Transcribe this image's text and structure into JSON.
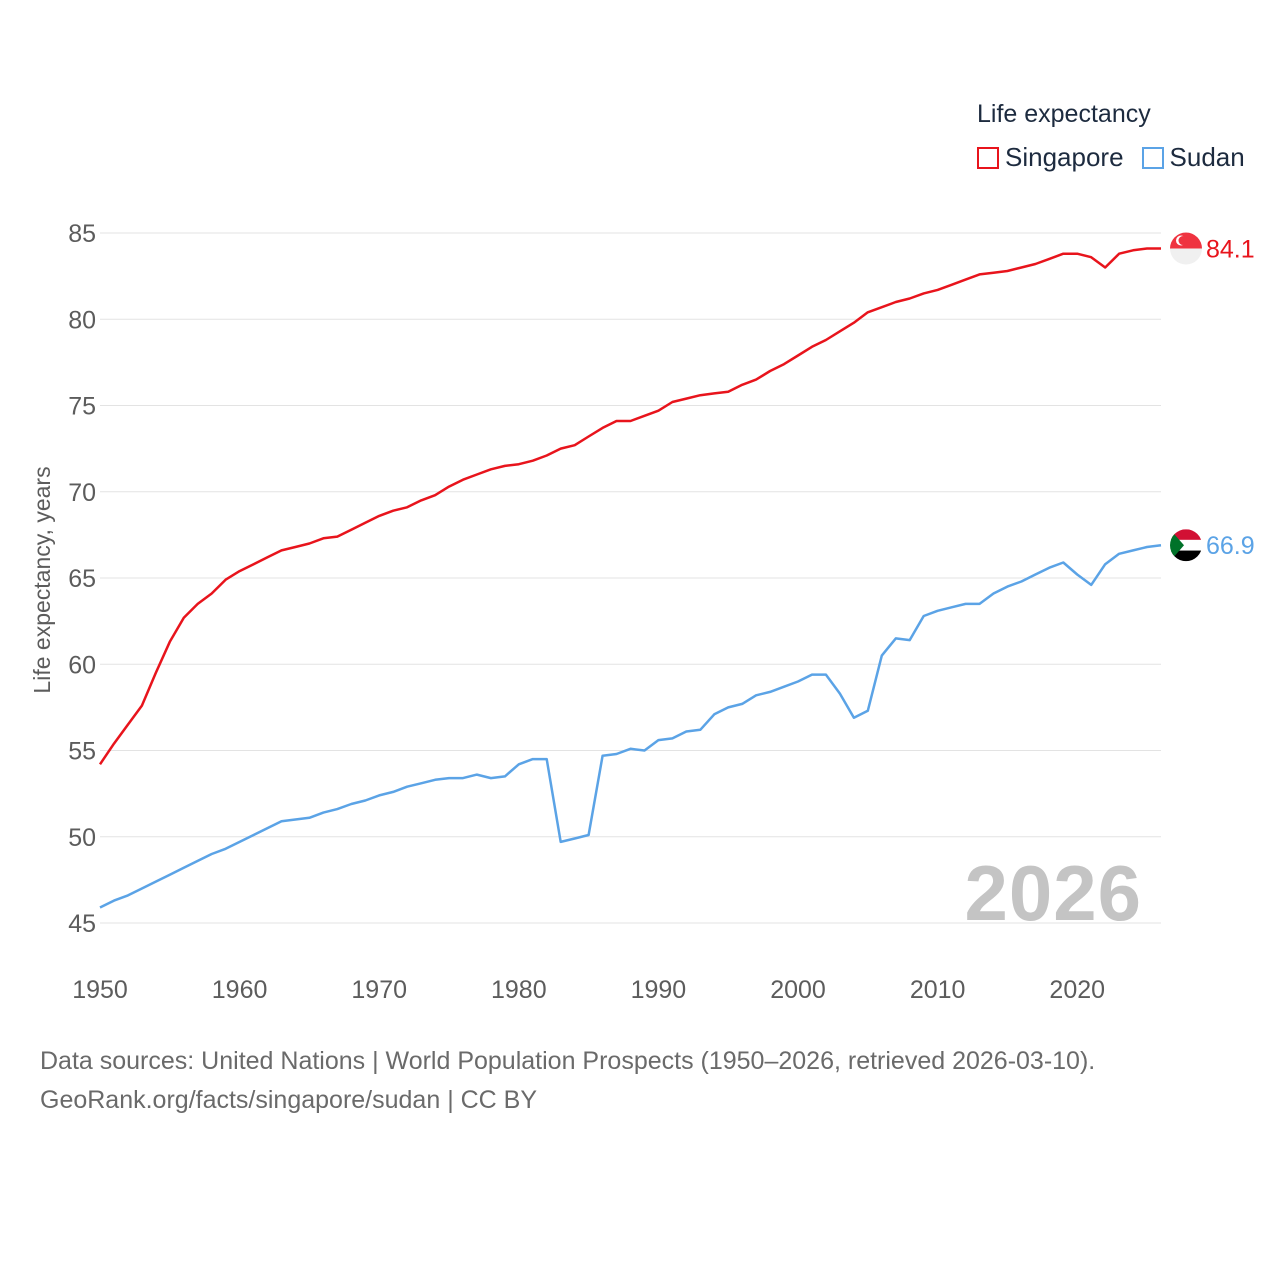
{
  "legend": {
    "title": "Life expectancy",
    "items": [
      {
        "label": "Singapore",
        "color": "#e8141c"
      },
      {
        "label": "Sudan",
        "color": "#5ba3e6"
      }
    ]
  },
  "year_watermark": "2026",
  "source": {
    "line1": "Data sources: United Nations | World Population Prospects (1950–2026, retrieved 2026-03-10).",
    "line2": "GeoRank.org/facts/singapore/sudan | CC BY"
  },
  "end_labels": [
    {
      "country": "Singapore",
      "value_text": "84.1",
      "flag": "singapore-flag-icon"
    },
    {
      "country": "Sudan",
      "value_text": "66.9",
      "flag": "sudan-flag-icon"
    }
  ],
  "chart_data": {
    "type": "line",
    "title": "Life expectancy",
    "xlabel": "",
    "ylabel": "Life expectancy, years",
    "xlim": [
      1950,
      2026
    ],
    "ylim": [
      43,
      88
    ],
    "xticks": [
      1950,
      1960,
      1970,
      1980,
      1990,
      2000,
      2010,
      2020
    ],
    "yticks": [
      45,
      50,
      55,
      60,
      65,
      70,
      75,
      80,
      85
    ],
    "grid": true,
    "legend_position": "top-right",
    "x": [
      1950,
      1951,
      1952,
      1953,
      1954,
      1955,
      1956,
      1957,
      1958,
      1959,
      1960,
      1961,
      1962,
      1963,
      1964,
      1965,
      1966,
      1967,
      1968,
      1969,
      1970,
      1971,
      1972,
      1973,
      1974,
      1975,
      1976,
      1977,
      1978,
      1979,
      1980,
      1981,
      1982,
      1983,
      1984,
      1985,
      1986,
      1987,
      1988,
      1989,
      1990,
      1991,
      1992,
      1993,
      1994,
      1995,
      1996,
      1997,
      1998,
      1999,
      2000,
      2001,
      2002,
      2003,
      2004,
      2005,
      2006,
      2007,
      2008,
      2009,
      2010,
      2011,
      2012,
      2013,
      2014,
      2015,
      2016,
      2017,
      2018,
      2019,
      2020,
      2021,
      2022,
      2023,
      2024,
      2025,
      2026
    ],
    "series": [
      {
        "name": "Singapore",
        "color": "#e8141c",
        "values": [
          54.2,
          55.4,
          56.5,
          57.6,
          59.5,
          61.3,
          62.7,
          63.5,
          64.1,
          64.9,
          65.4,
          65.8,
          66.2,
          66.6,
          66.8,
          67.0,
          67.3,
          67.4,
          67.8,
          68.2,
          68.6,
          68.9,
          69.1,
          69.5,
          69.8,
          70.3,
          70.7,
          71.0,
          71.3,
          71.5,
          71.6,
          71.8,
          72.1,
          72.5,
          72.7,
          73.2,
          73.7,
          74.1,
          74.1,
          74.4,
          74.7,
          75.2,
          75.4,
          75.6,
          75.7,
          75.8,
          76.2,
          76.5,
          77.0,
          77.4,
          77.9,
          78.4,
          78.8,
          79.3,
          79.8,
          80.4,
          80.7,
          81.0,
          81.2,
          81.5,
          81.7,
          82.0,
          82.3,
          82.6,
          82.7,
          82.8,
          83.0,
          83.2,
          83.5,
          83.8,
          83.8,
          83.6,
          83.0,
          83.8,
          84.0,
          84.1,
          84.1
        ]
      },
      {
        "name": "Sudan",
        "color": "#5ba3e6",
        "values": [
          45.9,
          46.3,
          46.6,
          47.0,
          47.4,
          47.8,
          48.2,
          48.6,
          49.0,
          49.3,
          49.7,
          50.1,
          50.5,
          50.9,
          51.0,
          51.1,
          51.4,
          51.6,
          51.9,
          52.1,
          52.4,
          52.6,
          52.9,
          53.1,
          53.3,
          53.4,
          53.4,
          53.6,
          53.4,
          53.5,
          54.2,
          54.5,
          54.5,
          49.7,
          49.9,
          50.1,
          54.7,
          54.8,
          55.1,
          55.0,
          55.6,
          55.7,
          56.1,
          56.2,
          57.1,
          57.5,
          57.7,
          58.2,
          58.4,
          58.7,
          59.0,
          59.4,
          59.4,
          58.3,
          56.9,
          57.3,
          60.5,
          61.5,
          61.4,
          62.8,
          63.1,
          63.3,
          63.5,
          63.5,
          64.1,
          64.5,
          64.8,
          65.2,
          65.6,
          65.9,
          65.2,
          64.6,
          65.8,
          66.4,
          66.6,
          66.8,
          66.9
        ]
      }
    ]
  }
}
